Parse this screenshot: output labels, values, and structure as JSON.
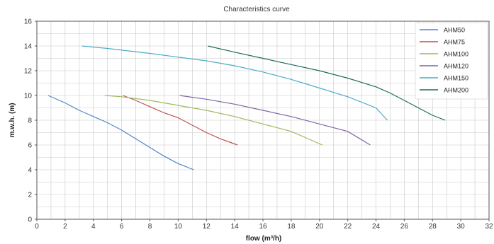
{
  "chart_data": {
    "type": "line",
    "title": "Characteristics curve",
    "xlabel": "flow (m³/h)",
    "ylabel": "m.w.h. (m)",
    "xlim": [
      0,
      32
    ],
    "ylim": [
      0,
      16
    ],
    "xticks": [
      0,
      2,
      4,
      6,
      8,
      10,
      12,
      14,
      16,
      18,
      20,
      22,
      24,
      26,
      28,
      30,
      32
    ],
    "yticks": [
      0,
      2,
      4,
      6,
      8,
      10,
      12,
      14,
      16
    ],
    "grid": true,
    "legend_position": "top-right",
    "series": [
      {
        "name": "AHM50",
        "color": "#4f86c6",
        "points": [
          [
            0.8,
            10.0
          ],
          [
            2,
            9.4
          ],
          [
            3,
            8.8
          ],
          [
            4,
            8.3
          ],
          [
            5,
            7.8
          ],
          [
            6,
            7.2
          ],
          [
            7,
            6.5
          ],
          [
            8,
            5.8
          ],
          [
            9,
            5.1
          ],
          [
            10,
            4.5
          ],
          [
            11.1,
            4.0
          ]
        ]
      },
      {
        "name": "AHM75",
        "color": "#c0504d",
        "points": [
          [
            6.1,
            10.0
          ],
          [
            7,
            9.6
          ],
          [
            8,
            9.1
          ],
          [
            9,
            8.6
          ],
          [
            10,
            8.2
          ],
          [
            11,
            7.6
          ],
          [
            12,
            7.0
          ],
          [
            13,
            6.5
          ],
          [
            14.2,
            6.0
          ]
        ]
      },
      {
        "name": "AHM100",
        "color": "#9bbb59",
        "points": [
          [
            4.8,
            10.0
          ],
          [
            6,
            9.9
          ],
          [
            8,
            9.6
          ],
          [
            10,
            9.2
          ],
          [
            12,
            8.8
          ],
          [
            14,
            8.3
          ],
          [
            16,
            7.7
          ],
          [
            18,
            7.1
          ],
          [
            19,
            6.6
          ],
          [
            20.2,
            6.0
          ]
        ]
      },
      {
        "name": "AHM120",
        "color": "#8064a2",
        "points": [
          [
            10.1,
            10.0
          ],
          [
            12,
            9.7
          ],
          [
            14,
            9.3
          ],
          [
            16,
            8.8
          ],
          [
            18,
            8.3
          ],
          [
            20,
            7.7
          ],
          [
            22,
            7.1
          ],
          [
            23.6,
            6.0
          ]
        ]
      },
      {
        "name": "AHM150",
        "color": "#4bacc6",
        "points": [
          [
            3.2,
            14.0
          ],
          [
            5,
            13.8
          ],
          [
            8,
            13.4
          ],
          [
            10,
            13.1
          ],
          [
            12,
            12.8
          ],
          [
            14,
            12.4
          ],
          [
            16,
            11.9
          ],
          [
            18,
            11.3
          ],
          [
            20,
            10.6
          ],
          [
            22,
            9.9
          ],
          [
            24,
            9.0
          ],
          [
            24.8,
            8.0
          ]
        ]
      },
      {
        "name": "AHM200",
        "color": "#1f6b5a",
        "points": [
          [
            12.1,
            14.0
          ],
          [
            14,
            13.5
          ],
          [
            16,
            13.0
          ],
          [
            18,
            12.5
          ],
          [
            20,
            12.0
          ],
          [
            22,
            11.4
          ],
          [
            24,
            10.7
          ],
          [
            25,
            10.2
          ],
          [
            26,
            9.6
          ],
          [
            27,
            9.0
          ],
          [
            28,
            8.4
          ],
          [
            28.9,
            8.0
          ]
        ]
      }
    ]
  }
}
